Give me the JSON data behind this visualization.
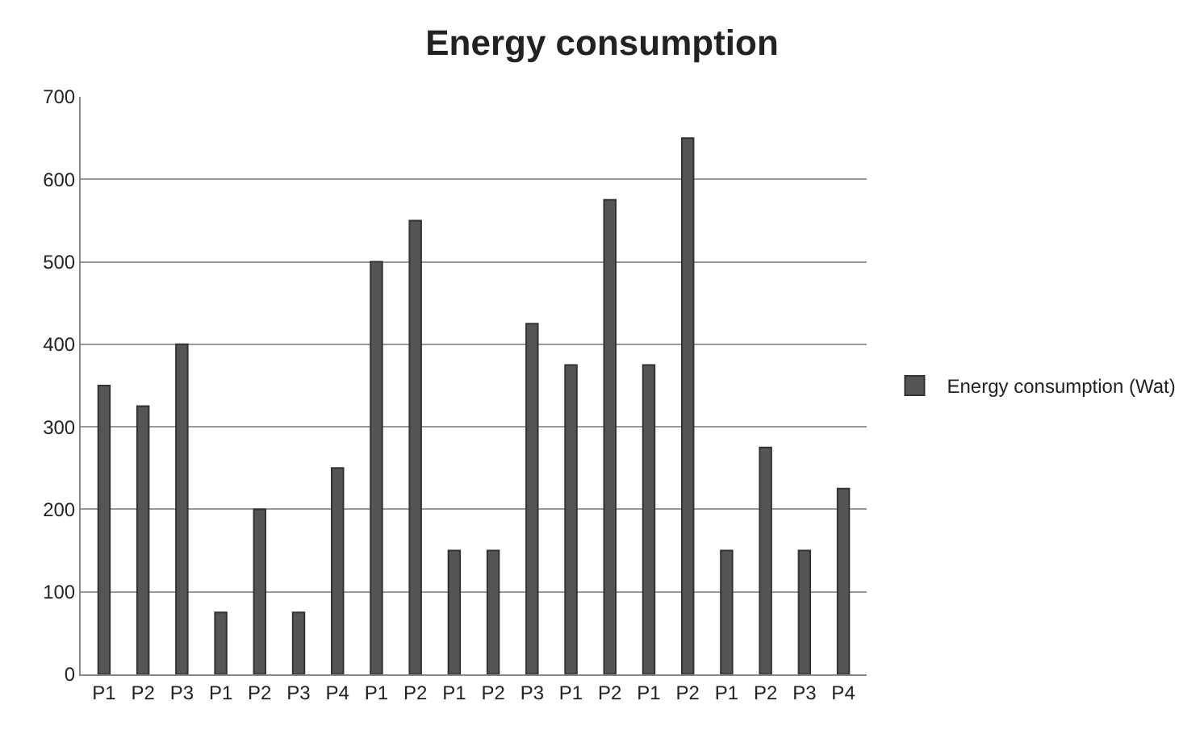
{
  "chart_data": {
    "type": "bar",
    "title": "Energy consumption",
    "categories": [
      "P1",
      "P2",
      "P3",
      "P1",
      "P2",
      "P3",
      "P4",
      "P1",
      "P2",
      "P1",
      "P2",
      "P3",
      "P1",
      "P2",
      "P1",
      "P2",
      "P1",
      "P2",
      "P3",
      "P4"
    ],
    "series": [
      {
        "name": "Energy consumption (Wat)",
        "color": "#555555",
        "values": [
          350,
          325,
          400,
          75,
          200,
          75,
          250,
          500,
          550,
          150,
          150,
          425,
          375,
          575,
          375,
          650,
          150,
          275,
          150,
          225
        ]
      }
    ],
    "ylim": [
      0,
      700
    ],
    "yticks": [
      0,
      100,
      200,
      300,
      400,
      500,
      600,
      700
    ],
    "grid": "y",
    "legend": "right"
  }
}
